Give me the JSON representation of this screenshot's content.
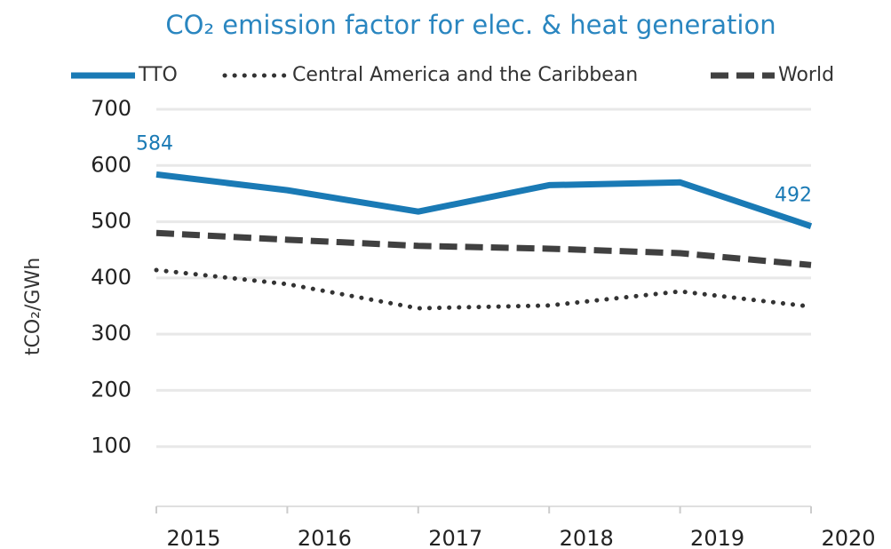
{
  "chart_data": {
    "type": "line",
    "title": "CO₂ emission factor for elec. & heat generation",
    "y_label": "tCO₂/GWh",
    "categories": [
      "2015",
      "2016",
      "2017",
      "2018",
      "2019",
      "2020"
    ],
    "series": [
      {
        "name": "TTO",
        "color": "#1a7ab5",
        "style": "solid",
        "values": [
          584,
          556,
          518,
          565,
          570,
          492
        ],
        "value_labels": [
          "584",
          null,
          null,
          null,
          null,
          "492"
        ]
      },
      {
        "name": "Central America and the Caribbean",
        "color": "#333333",
        "style": "dotted",
        "values": [
          414,
          389,
          346,
          351,
          376,
          349
        ]
      },
      {
        "name": "World",
        "color": "#404040",
        "style": "dashed",
        "values": [
          480,
          468,
          457,
          452,
          444,
          423
        ]
      }
    ],
    "ylim": [
      0,
      700
    ],
    "yticks": [
      100,
      200,
      300,
      400,
      500,
      600,
      700
    ],
    "grid": true,
    "legend": "top"
  }
}
